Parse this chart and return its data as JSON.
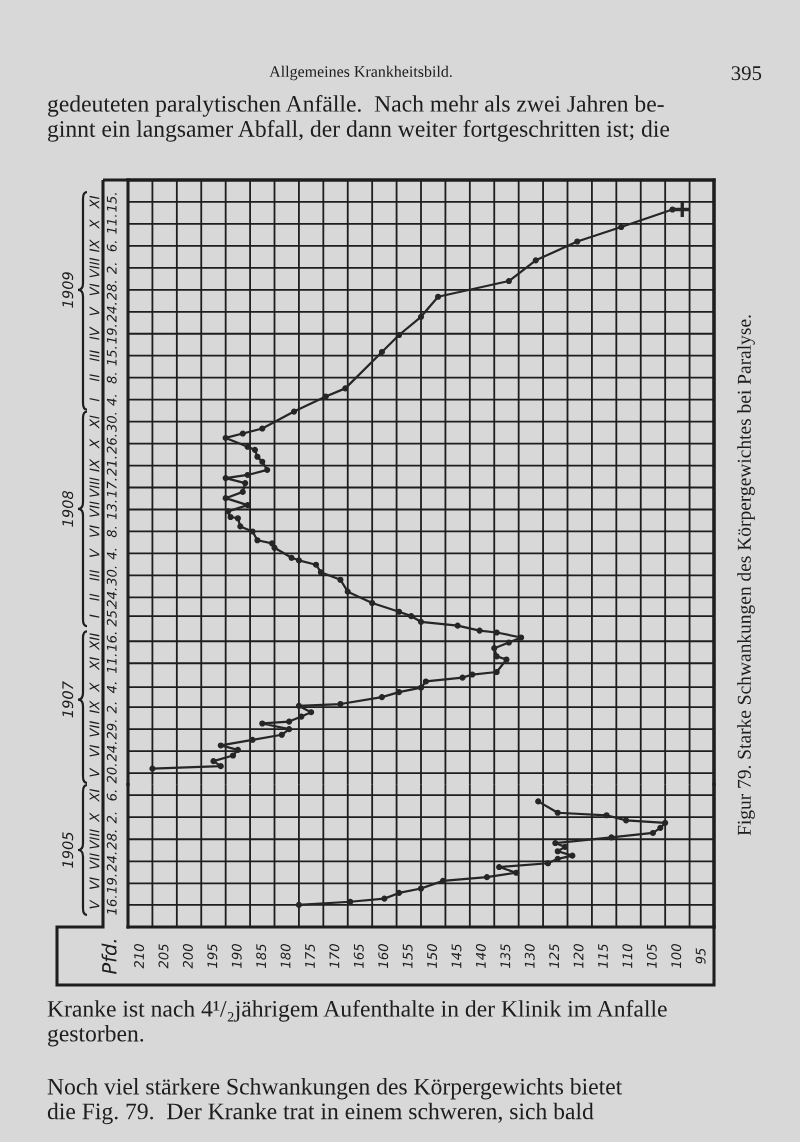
{
  "chart_data": [
    {
      "type": "line",
      "orientation": "horizontal",
      "xlim": [
        212.5,
        92.5
      ],
      "xticks": [
        {
          "value": 212.5,
          "label": null
        },
        210,
        {
          "value": 207.5,
          "label": null
        },
        205,
        {
          "value": 202.5,
          "label": null
        },
        200,
        {
          "value": 197.5,
          "label": null
        },
        195,
        {
          "value": 192.5,
          "label": null
        },
        190,
        {
          "value": 187.5,
          "label": null
        },
        185,
        {
          "value": 182.5,
          "label": null
        },
        180,
        {
          "value": 177.5,
          "label": null
        },
        175,
        {
          "value": 172.5,
          "label": null
        },
        170,
        {
          "value": 167.5,
          "label": null
        },
        165,
        {
          "value": 162.5,
          "label": null
        },
        160,
        {
          "value": 157.5,
          "label": null
        },
        155,
        {
          "value": 152.5,
          "label": null
        },
        150,
        {
          "value": 147.5,
          "label": null
        },
        145,
        {
          "value": 142.5,
          "label": null
        },
        140,
        {
          "value": 137.5,
          "label": null
        },
        135,
        {
          "value": 132.5,
          "label": null
        },
        130,
        {
          "value": 127.5,
          "label": null
        },
        125,
        {
          "value": 122.5,
          "label": null
        },
        120,
        {
          "value": 117.5,
          "label": null
        },
        115,
        {
          "value": 112.5,
          "label": null
        },
        110,
        {
          "value": 107.5,
          "label": null
        },
        105,
        {
          "value": 102.5,
          "label": null
        },
        100,
        {
          "value": 97.5,
          "label": null
        },
        95,
        {
          "value": 92.5,
          "label": null
        }
      ],
      "tick_labels": "y",
      "ylim": [
        "1907-05-02",
        "1909-12-20"
      ],
      "yticks": [
        {
          "value": "1907-05-20",
          "label": "V\n20."
        },
        {
          "value": "1907-06-24",
          "label": "VI\n24."
        },
        {
          "value": "1907-07-29",
          "label": "VII\n29."
        },
        {
          "value": "1907-09-02",
          "label": "IX\n2."
        },
        {
          "value": "1907-10-04",
          "label": "X\n4."
        },
        {
          "value": "1907-11-11",
          "label": "XI\n11."
        },
        {
          "value": "1907-12-16",
          "label": "XII\n16."
        },
        {
          "value": "1908-01-25",
          "label": "I\n25."
        },
        {
          "value": "1908-02-24",
          "label": "II\n24."
        },
        {
          "value": "1908-03-30",
          "label": "III\n30."
        },
        {
          "value": "1908-05-04",
          "label": "V\n4."
        },
        {
          "value": "1908-06-08",
          "label": "VI\n8."
        },
        {
          "value": "1908-07-13",
          "label": "VII\n13."
        },
        {
          "value": "1908-08-17",
          "label": "VIII\n17."
        },
        {
          "value": "1908-09-21",
          "label": "IX\n21."
        },
        {
          "value": "1908-10-26",
          "label": "X\n26."
        },
        {
          "value": "1908-11-30",
          "label": "XI\n30."
        },
        {
          "value": "1909-01-04",
          "label": "I\n4."
        },
        {
          "value": "1909-02-08",
          "label": "II\n8."
        },
        {
          "value": "1909-03-15",
          "label": "III\n15."
        },
        {
          "value": "1909-04-19",
          "label": "IV\n19."
        },
        {
          "value": "1909-05-24",
          "label": "V\n24."
        },
        {
          "value": "1909-06-28",
          "label": "VI\n28."
        },
        {
          "value": "1909-08-02",
          "label": "VIII\n2."
        },
        {
          "value": "1909-09-06",
          "label": "IX\n6."
        },
        {
          "value": "1909-10-11",
          "label": "X\n11."
        },
        {
          "value": "1909-11-15",
          "label": "XI\n15."
        }
      ],
      "y2lim": [
        "1907-05-02",
        "1909-12-20"
      ],
      "y2ticks": [
        {
          "value": "1907-09-14",
          "label": "1907"
        },
        {
          "value": "1908-07-14",
          "label": "1908"
        },
        {
          "value": "1909-06-28",
          "label": "1909"
        }
      ],
      "grid": true,
      "marker": "circle",
      "line_style": "solid",
      "series": [
        {
          "color": "#262626",
          "x": [
            "1907-05-27",
            "1907-05-31",
            "1907-06-08",
            "1907-06-17",
            "1907-06-26",
            "1907-07-03",
            "1907-07-12",
            "1907-07-20",
            "1907-07-29",
            "1907-08-07",
            "1907-08-10",
            "1907-08-18",
            "1907-08-25",
            "1907-09-04",
            "1907-09-07",
            "1907-09-18",
            "1907-09-26",
            "1907-10-03",
            "1907-10-13",
            "1907-10-19",
            "1907-10-24",
            "1907-10-28",
            "1907-11-17",
            "1907-11-22",
            "1907-12-05",
            "1907-12-14",
            "1907-12-22",
            "1907-12-30",
            "1908-01-02",
            "1908-01-10",
            "1908-01-16",
            "1908-01-25",
            "1908-02-01",
            "1908-02-15",
            "1908-03-04",
            "1908-03-23",
            "1908-04-04",
            "1908-04-16",
            "1908-04-23",
            "1908-04-27",
            "1908-05-13",
            "1908-05-20",
            "1908-05-25",
            "1908-06-08",
            "1908-06-16",
            "1908-06-29",
            "1908-07-01",
            "1908-07-10",
            "1908-07-20",
            "1908-07-31",
            "1908-08-10",
            "1908-08-24",
            "1908-09-01",
            "1908-09-06",
            "1908-09-14",
            "1908-09-27",
            "1908-10-05",
            "1908-10-16",
            "1908-10-21",
            "1908-11-04",
            "1908-11-11",
            "1908-11-19",
            "1908-12-16",
            "1909-01-09",
            "1909-01-22",
            "1909-03-21",
            "1909-04-17",
            "1909-05-16",
            "1909-06-17",
            "1909-07-12",
            "1909-08-14",
            "1909-09-13",
            "1909-10-06",
            "1909-11-03"
          ],
          "values": [
            207.5,
            193.5,
            195,
            191,
            190,
            193.5,
            187,
            181,
            179.5,
            185,
            179.5,
            177,
            175,
            177.5,
            169,
            160.5,
            157,
            152.5,
            151.5,
            144,
            142,
            137,
            135,
            137,
            137.5,
            134.5,
            132,
            137,
            140.5,
            145,
            152.5,
            154.5,
            157,
            162.5,
            167.5,
            169,
            173,
            174,
            177.5,
            179,
            182.5,
            183,
            186,
            187,
            189.5,
            190,
            191.5,
            192,
            188,
            192.5,
            189,
            188.5,
            192.5,
            188,
            184,
            185,
            186,
            186.5,
            188,
            192.5,
            189,
            185,
            178.5,
            172,
            168,
            160.5,
            157,
            152.5,
            149,
            134.5,
            129,
            120.5,
            111.5,
            101
          ]
        },
        {
          "type": "scatter",
          "marker": "cross",
          "color": "#262626",
          "x": [
            "1909-11-03"
          ],
          "values": [
            99
          ]
        }
      ],
      "annotations": [
        "Allgemeines Krankheitsbild.",
        "395",
        "gedeuteten paralytischen Anfälle.  Nach mehr als zwei Jahren be-\nginnt ein langsamer Abfall, der dann weiter fortgeschritten ist; die",
        "Kranke ist nach 4¹/₂jährigem Aufenthalte in der Klinik im Anfalle\ngestorben.",
        "Noch viel stärkere Schwankungen des Körpergewichts bietet\ndie Fig. 79.  Der Kranke trat in einem schweren, sich bald",
        "Figur 79. Starke Schwankungen des Körpergewichtes bei Paralyse."
      ]
    },
    {
      "type": "line",
      "orientation": "horizontal",
      "ylabel": "1905",
      "xlim": [
        212.5,
        92.5
      ],
      "xticks": [
        {
          "value": 212.5,
          "label": null
        },
        210,
        {
          "value": 207.5,
          "label": null
        },
        205,
        {
          "value": 202.5,
          "label": null
        },
        200,
        {
          "value": 197.5,
          "label": null
        },
        195,
        {
          "value": 192.5,
          "label": null
        },
        190,
        {
          "value": 187.5,
          "label": null
        },
        185,
        {
          "value": 182.5,
          "label": null
        },
        180,
        {
          "value": 177.5,
          "label": null
        },
        175,
        {
          "value": 172.5,
          "label": null
        },
        170,
        {
          "value": 167.5,
          "label": null
        },
        165,
        {
          "value": 162.5,
          "label": null
        },
        160,
        {
          "value": 157.5,
          "label": null
        },
        155,
        {
          "value": 152.5,
          "label": null
        },
        150,
        {
          "value": 147.5,
          "label": null
        },
        145,
        {
          "value": 142.5,
          "label": null
        },
        140,
        {
          "value": 137.5,
          "label": null
        },
        135,
        {
          "value": 132.5,
          "label": null
        },
        130,
        {
          "value": 127.5,
          "label": null
        },
        125,
        {
          "value": 122.5,
          "label": null
        },
        120,
        {
          "value": 117.5,
          "label": null
        },
        115,
        {
          "value": 112.5,
          "label": null
        },
        110,
        {
          "value": 107.5,
          "label": null
        },
        105,
        {
          "value": 102.5,
          "label": null
        },
        100,
        {
          "value": 97.5,
          "label": null
        },
        95,
        {
          "value": 92.5,
          "label": null
        }
      ],
      "ylim": [
        "1905-04-11",
        "1905-11-23"
      ],
      "yticks": [
        {
          "value": "1905-05-16",
          "label": "V\n16."
        },
        {
          "value": "1905-06-19",
          "label": "VI\n19."
        },
        {
          "value": "1905-07-24",
          "label": "VII\n24."
        },
        {
          "value": "1905-08-28",
          "label": "VIII\n28."
        },
        {
          "value": "1905-10-02",
          "label": "X\n2."
        },
        {
          "value": "1905-11-06",
          "label": "XI\n6."
        }
      ],
      "grid": true,
      "marker": "circle",
      "line_style": "solid",
      "series": [
        {
          "color": "#262626",
          "x": [
            "1905-05-16",
            "1905-05-21",
            "1905-05-26",
            "1905-06-04",
            "1905-06-11",
            "1905-06-23",
            "1905-06-29",
            "1905-07-06",
            "1905-07-15",
            "1905-07-21",
            "1905-07-28",
            "1905-08-02",
            "1905-08-09",
            "1905-08-16",
            "1905-08-22",
            "1905-08-31",
            "1905-09-07",
            "1905-09-15",
            "1905-09-23",
            "1905-09-27",
            "1905-10-05",
            "1905-10-09",
            "1905-10-27"
          ],
          "values": [
            177.5,
            167,
            160,
            157,
            152.5,
            148,
            139,
            133,
            136.5,
            126.5,
            124.5,
            121.5,
            124.5,
            123,
            125,
            113.5,
            105,
            103.5,
            102.5,
            110.5,
            114.5,
            124.5,
            128.5
          ]
        }
      ],
      "annotations": [
        "Pfd."
      ]
    }
  ]
}
